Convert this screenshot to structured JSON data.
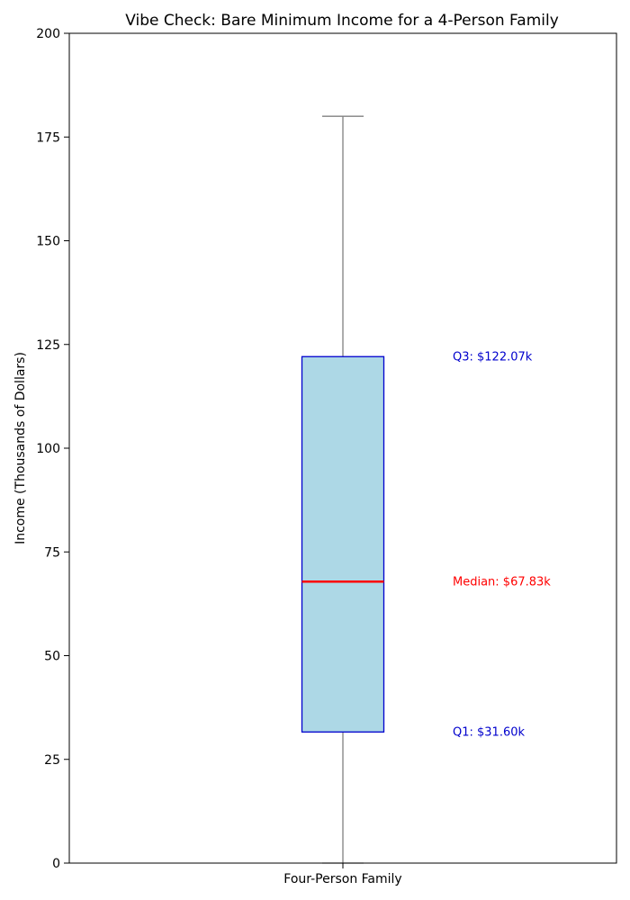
{
  "chart_data": {
    "type": "box",
    "title": "Vibe Check: Bare Minimum Income for a 4-Person Family",
    "xlabel": "",
    "ylabel": "Income (Thousands of Dollars)",
    "ylim": [
      0,
      200
    ],
    "yticks": [
      0,
      25,
      50,
      75,
      100,
      125,
      150,
      175,
      200
    ],
    "categories": [
      "Four-Person Family"
    ],
    "box": {
      "whisker_low": 0,
      "q1": 31.6,
      "median": 67.83,
      "q3": 122.07,
      "whisker_high": 180
    },
    "annotations": {
      "q3": "Q3: $122.07k",
      "median": "Median: $67.83k",
      "q1": "Q1: $31.60k"
    },
    "colors": {
      "box_fill": "#add8e6",
      "box_edge": "#0000cd",
      "median_line": "#ff0000",
      "whisker": "#808080",
      "q_annot": "#0000cd",
      "median_annot": "#ff0000"
    }
  }
}
